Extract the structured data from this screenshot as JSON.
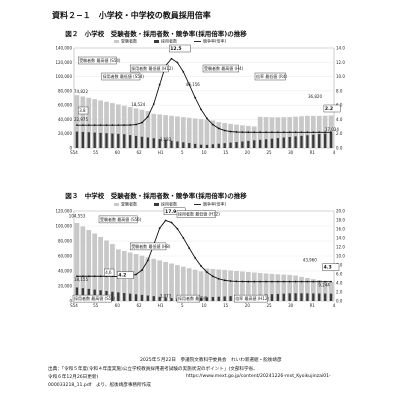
{
  "document": {
    "page_title": "資料２−１　小学校・中学校の教員採用倍率",
    "credit": "2025年５月22日　参議院文教科学委員会　れいわ新選組・舩後靖彦",
    "source_line1": "出典：「令和５年度(令和４年度実施)公立学校教員採用選考試験の実施状況のポイント」(文部科学省、",
    "source_line2": "令和６年12月26日更新)",
    "source_url": "https://www.mext.go.jp/content/20241226-mxt_Kyoikujinzai01-",
    "source_line3": "000033218_11.pdf　より、舩後靖彦事務所作成"
  },
  "chart_data": [
    {
      "type": "bar",
      "title": "図２　小学校　受験者数・採用者数・競争率(採用倍率)の推移",
      "legend": [
        "受験者数",
        "採用者数",
        "競争率(倍率)"
      ],
      "y_left_ticks": [
        "140,000",
        "120,000",
        "100,000",
        "80,000",
        "60,000",
        "40,000",
        "20,000",
        "0"
      ],
      "y_right_ticks": [
        "14.0",
        "12.0",
        "10.0",
        "8.0",
        "6.0",
        "4.0",
        "2.0",
        "0.0"
      ],
      "ylim_left": [
        0,
        140000
      ],
      "ylim_right": [
        0,
        14
      ],
      "x_ticks": [
        "S54",
        "55",
        "60",
        "62",
        "H1",
        "5",
        "10",
        "15",
        "20",
        "25",
        "30",
        "R1",
        "4"
      ],
      "ann_text": {
        "peak_ratio": "12.5",
        "first_ratio": "3.8",
        "first_applicants": "74,822",
        "first_hires": "22,975",
        "mid_hires": "18,524",
        "mid_value": "46,156",
        "low_hires": "3,683",
        "end_applicants": "36,820",
        "end_ratio": "2.2",
        "end_hires": "17,034",
        "label_a": "受験者数 最高値 (S54)",
        "label_b": "採用者数 最低値 (S54)",
        "label_c": "採用者数 最低値 (H12)",
        "label_d": "受験者数 最高値 (H4)",
        "label_e": "倍率 最低値 (R4)",
        "label_f": "採用者数 最高値"
      }
    },
    {
      "type": "bar",
      "title": "図３　中学校　受験者数・採用者数・競争率(採用倍率)の推移",
      "legend": [
        "受験者数",
        "採用者数",
        "競争率(倍率)"
      ],
      "y_left_ticks": [
        "120,000",
        "100,000",
        "80,000",
        "60,000",
        "40,000",
        "20,000",
        "0"
      ],
      "y_right_ticks": [
        "20.0",
        "18.0",
        "16.0",
        "14.0",
        "12.0",
        "10.0",
        "8.0",
        "6.0",
        "4.0",
        "2.0",
        "0.0"
      ],
      "ylim_left": [
        0,
        120000
      ],
      "ylim_right": [
        0,
        20
      ],
      "x_ticks": [
        "S54",
        "55",
        "60",
        "62",
        "H1",
        "5",
        "10",
        "15",
        "20",
        "25",
        "30",
        "R1",
        "4"
      ],
      "ann_text": {
        "peak_ratio": "17.9",
        "first_applicants": "104,553",
        "first_hires": "18,155",
        "first_ratio": "4.2",
        "hires_1": "4,6",
        "mid_value": "3,073",
        "end_applicants": "43,960",
        "end_ratio": "4.3",
        "end_hires": "9,244",
        "label_a": "受験者数 最高値 (S56)",
        "label_b": "採用者数 最低値 (H12)",
        "label_c": "採用者数 最高値 (S58)",
        "label_d": "受験者数 最低値 (H8)",
        "label_e": "採用者数 最高値",
        "label_f": "倍率 最高値 (H12)",
        "label_g": "倍率 最低値 (R4)"
      }
    }
  ]
}
